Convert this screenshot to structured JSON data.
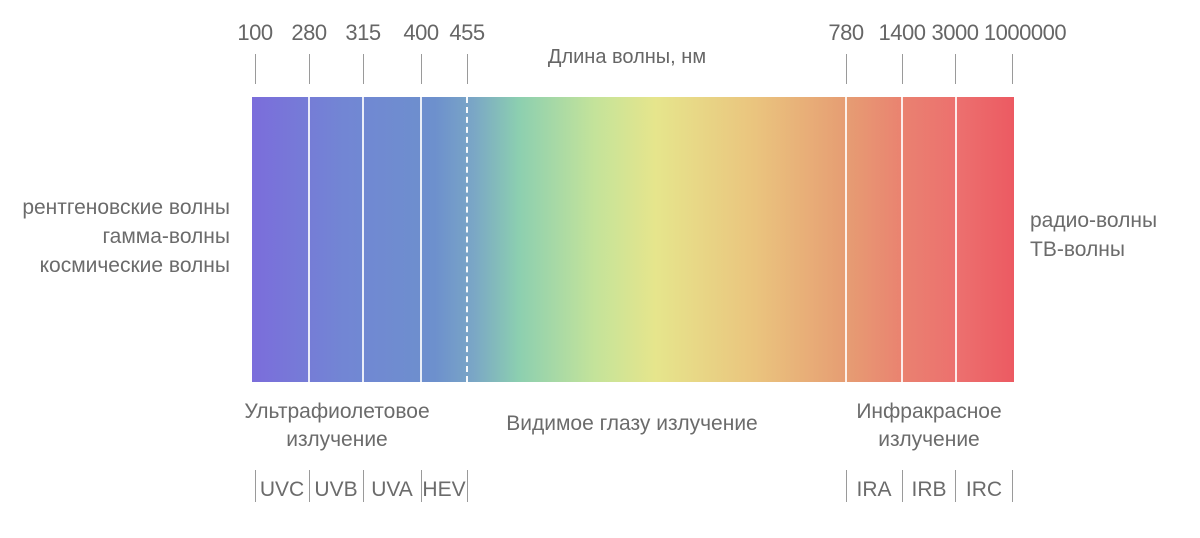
{
  "axis_title": "Длина волны, нм",
  "ticks": [
    "100",
    "280",
    "315",
    "400",
    "455",
    "780",
    "1400",
    "3000",
    "1000000"
  ],
  "left_labels": [
    "рентгеновские волны",
    "гамма-волны",
    "космические волны"
  ],
  "right_labels": [
    "радио-волны",
    "ТВ-волны"
  ],
  "regions": {
    "uv": [
      "Ультрафиолетовое",
      "излучение"
    ],
    "visible": "Видимое глазу излучение",
    "ir": [
      "Инфракрасное",
      "излучение"
    ]
  },
  "sub_bands": [
    "UVC",
    "UVB",
    "UVA",
    "HEV",
    "IRA",
    "IRB",
    "IRC"
  ],
  "colors": {
    "violet": "#7b6ddb",
    "blue": "#6d90cd",
    "green": "#8ccfb0",
    "yellow": "#e6e58c",
    "orange": "#e69d73",
    "red": "#ec5a62",
    "text": "#666666"
  }
}
